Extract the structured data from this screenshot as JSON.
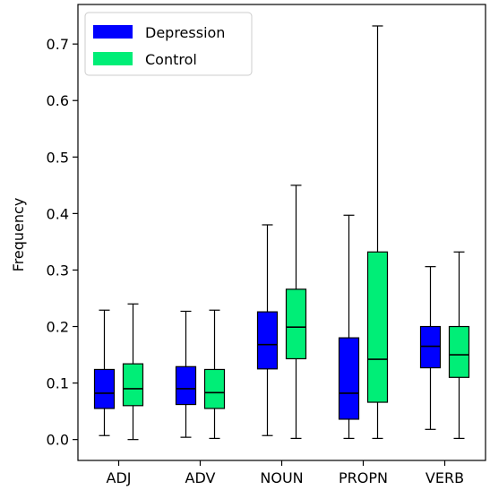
{
  "chart_data": {
    "type": "boxplot",
    "categories": [
      "ADJ",
      "ADV",
      "NOUN",
      "PROPN",
      "VERB"
    ],
    "ylabel": "Frequency",
    "xlabel": "",
    "ylim": [
      -0.037,
      0.77
    ],
    "yticks": [
      0.0,
      0.1,
      0.2,
      0.3,
      0.4,
      0.5,
      0.6,
      0.7
    ],
    "ytick_labels": [
      "0.0",
      "0.1",
      "0.2",
      "0.3",
      "0.4",
      "0.5",
      "0.6",
      "0.7"
    ],
    "grid": false,
    "legend": {
      "placement": "top-left",
      "entries": [
        {
          "label": "Depression",
          "color": "#0000ff"
        },
        {
          "label": "Control",
          "color": "#00ee77"
        }
      ]
    },
    "series": [
      {
        "name": "Depression",
        "color": "#0000ff",
        "boxes": [
          {
            "whisker_low": 0.007,
            "q1": 0.055,
            "median": 0.082,
            "q3": 0.124,
            "whisker_high": 0.229
          },
          {
            "whisker_low": 0.004,
            "q1": 0.062,
            "median": 0.09,
            "q3": 0.129,
            "whisker_high": 0.227
          },
          {
            "whisker_low": 0.007,
            "q1": 0.125,
            "median": 0.168,
            "q3": 0.226,
            "whisker_high": 0.38
          },
          {
            "whisker_low": 0.002,
            "q1": 0.036,
            "median": 0.082,
            "q3": 0.18,
            "whisker_high": 0.397
          },
          {
            "whisker_low": 0.018,
            "q1": 0.127,
            "median": 0.165,
            "q3": 0.2,
            "whisker_high": 0.306
          }
        ]
      },
      {
        "name": "Control",
        "color": "#00ee77",
        "boxes": [
          {
            "whisker_low": 0.0,
            "q1": 0.06,
            "median": 0.09,
            "q3": 0.134,
            "whisker_high": 0.24
          },
          {
            "whisker_low": 0.002,
            "q1": 0.055,
            "median": 0.083,
            "q3": 0.124,
            "whisker_high": 0.229
          },
          {
            "whisker_low": 0.002,
            "q1": 0.143,
            "median": 0.199,
            "q3": 0.266,
            "whisker_high": 0.45
          },
          {
            "whisker_low": 0.002,
            "q1": 0.066,
            "median": 0.142,
            "q3": 0.332,
            "whisker_high": 0.732
          },
          {
            "whisker_low": 0.002,
            "q1": 0.11,
            "median": 0.15,
            "q3": 0.2,
            "whisker_high": 0.332
          }
        ]
      }
    ]
  }
}
